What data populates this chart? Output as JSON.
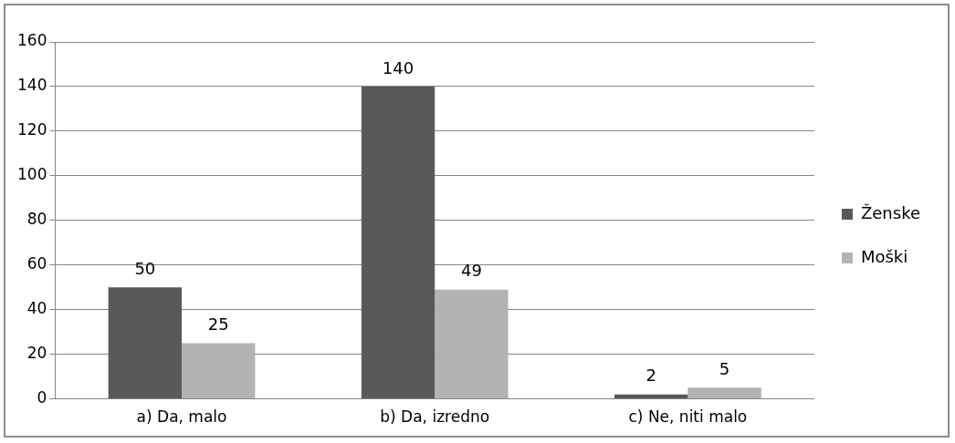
{
  "chart_data": {
    "type": "bar",
    "categories": [
      "a) Da, malo",
      "b) Da, izredno",
      "c) Ne, niti malo"
    ],
    "series": [
      {
        "name": "Ženske",
        "color": "#595959",
        "values": [
          50,
          140,
          2
        ]
      },
      {
        "name": "Moški",
        "color": "#b3b3b3",
        "values": [
          25,
          49,
          5
        ]
      }
    ],
    "ylim": [
      0,
      160
    ],
    "yticks": [
      0,
      20,
      40,
      60,
      80,
      100,
      120,
      140,
      160
    ],
    "grid": "y",
    "legend": "right",
    "data_labels": true
  }
}
